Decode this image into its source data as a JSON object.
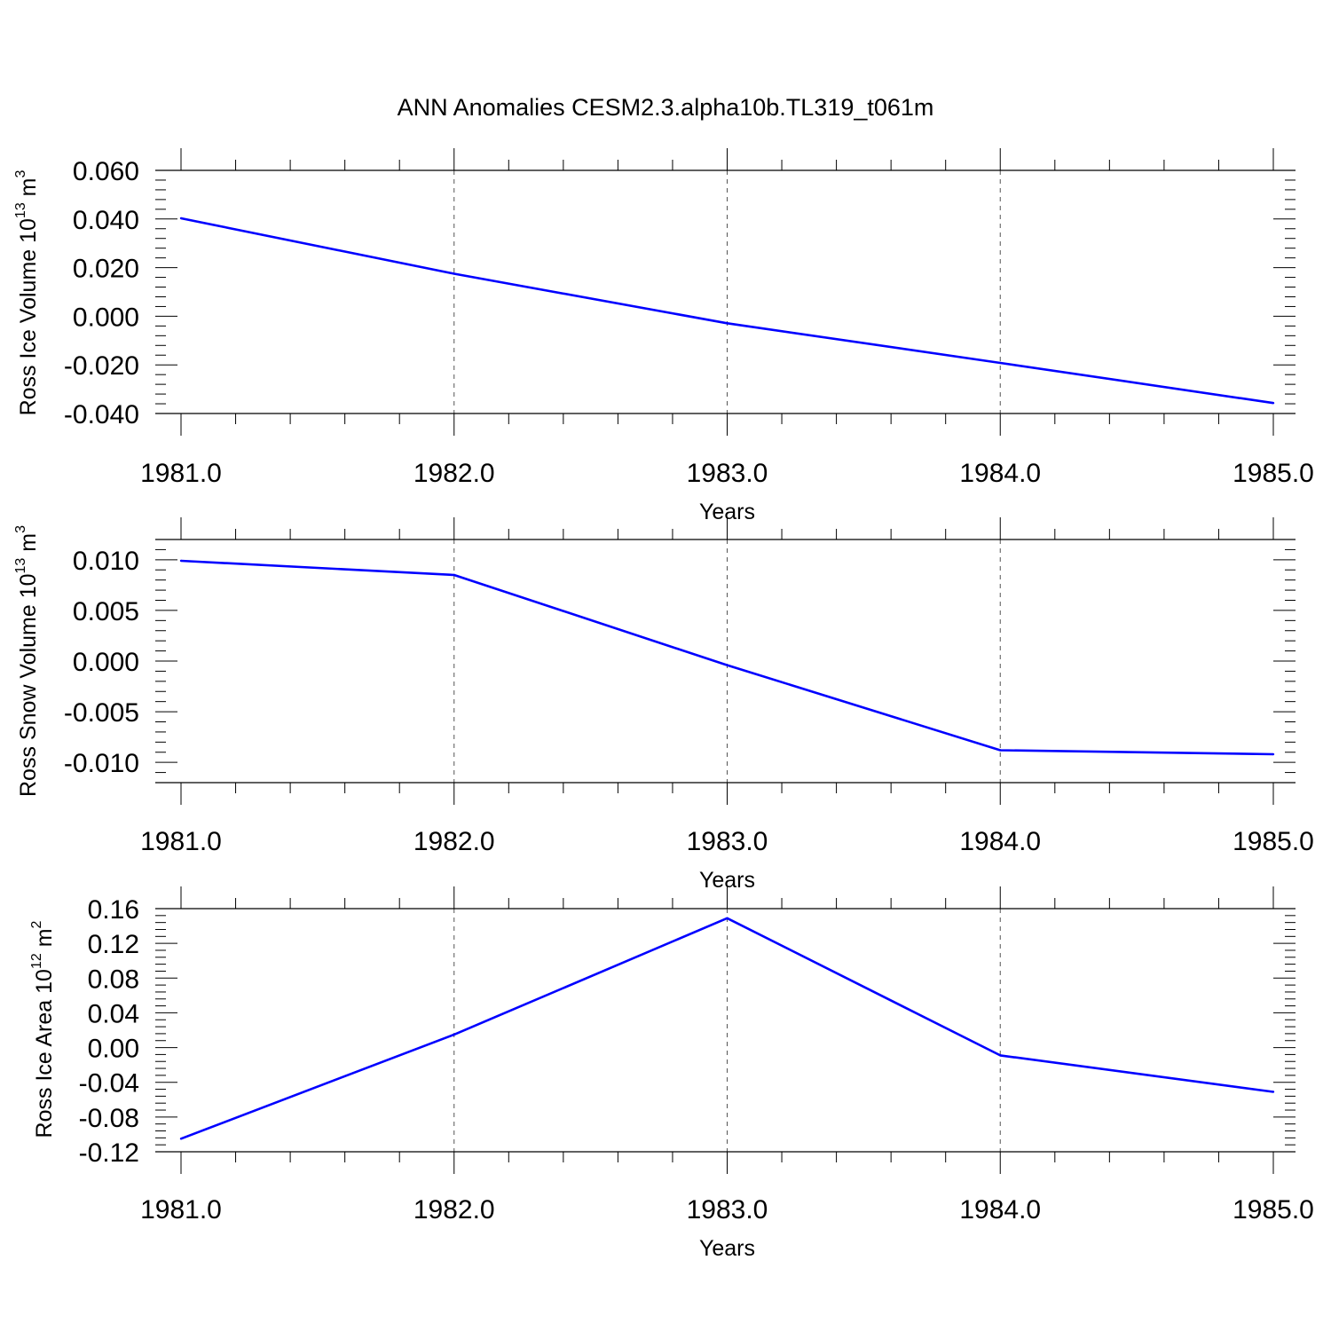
{
  "title": "ANN Anomalies CESM2.3.alpha10b.TL319_t061m",
  "colors": {
    "line": "#0000ff",
    "axis": "#000000",
    "grid": "#555555",
    "background": "#ffffff"
  },
  "chart_data": [
    {
      "type": "line",
      "ylabel": {
        "base": "Ross Ice Volume 10",
        "exp": "13",
        "unit": " m",
        "unit_exp": "3"
      },
      "xlabel": "Years",
      "x": [
        1981,
        1982,
        1983,
        1984,
        1985
      ],
      "xlim": [
        1981,
        1985
      ],
      "x_ticks": [
        1981,
        1982,
        1983,
        1984,
        1985
      ],
      "x_tick_labels": [
        "1981.0",
        "1982.0",
        "1983.0",
        "1984.0",
        "1985.0"
      ],
      "ylim": [
        -0.04,
        0.06
      ],
      "y_ticks": [
        -0.04,
        -0.02,
        0.0,
        0.02,
        0.04,
        0.06
      ],
      "y_tick_labels": [
        "-0.040",
        "-0.020",
        "0.000",
        "0.020",
        "0.040",
        "0.060"
      ],
      "series": [
        {
          "values": [
            0.0403,
            0.0175,
            -0.0029,
            -0.0192,
            -0.0357
          ]
        }
      ],
      "grid": "vertical dashed at major x ticks"
    },
    {
      "type": "line",
      "ylabel": {
        "base": "Ross Snow Volume 10",
        "exp": "13",
        "unit": " m",
        "unit_exp": "3"
      },
      "xlabel": "Years",
      "x": [
        1981,
        1982,
        1983,
        1984,
        1985
      ],
      "xlim": [
        1981,
        1985
      ],
      "x_ticks": [
        1981,
        1982,
        1983,
        1984,
        1985
      ],
      "x_tick_labels": [
        "1981.0",
        "1982.0",
        "1983.0",
        "1984.0",
        "1985.0"
      ],
      "ylim": [
        -0.012,
        0.012
      ],
      "y_ticks": [
        -0.01,
        -0.005,
        0.0,
        0.005,
        0.01
      ],
      "y_tick_labels": [
        "-0.010",
        "-0.005",
        "0.000",
        "0.005",
        "0.010"
      ],
      "series": [
        {
          "values": [
            0.0099,
            0.0085,
            -0.0004,
            -0.0088,
            -0.0092
          ]
        }
      ],
      "grid": "vertical dashed at major x ticks"
    },
    {
      "type": "line",
      "ylabel": {
        "base": "Ross Ice Area 10",
        "exp": "12",
        "unit": " m",
        "unit_exp": "2"
      },
      "xlabel": "Years",
      "x": [
        1981,
        1982,
        1983,
        1984,
        1985
      ],
      "xlim": [
        1981,
        1985
      ],
      "x_ticks": [
        1981,
        1982,
        1983,
        1984,
        1985
      ],
      "x_tick_labels": [
        "1981.0",
        "1982.0",
        "1983.0",
        "1984.0",
        "1985.0"
      ],
      "ylim": [
        -0.12,
        0.16
      ],
      "y_ticks": [
        -0.12,
        -0.08,
        -0.04,
        0.0,
        0.04,
        0.08,
        0.12,
        0.16
      ],
      "y_tick_labels": [
        "-0.12",
        "-0.08",
        "-0.04",
        "0.00",
        "0.04",
        "0.08",
        "0.12",
        "0.16"
      ],
      "series": [
        {
          "values": [
            -0.105,
            0.015,
            0.149,
            -0.009,
            -0.051
          ]
        }
      ],
      "grid": "vertical dashed at major x ticks"
    }
  ]
}
